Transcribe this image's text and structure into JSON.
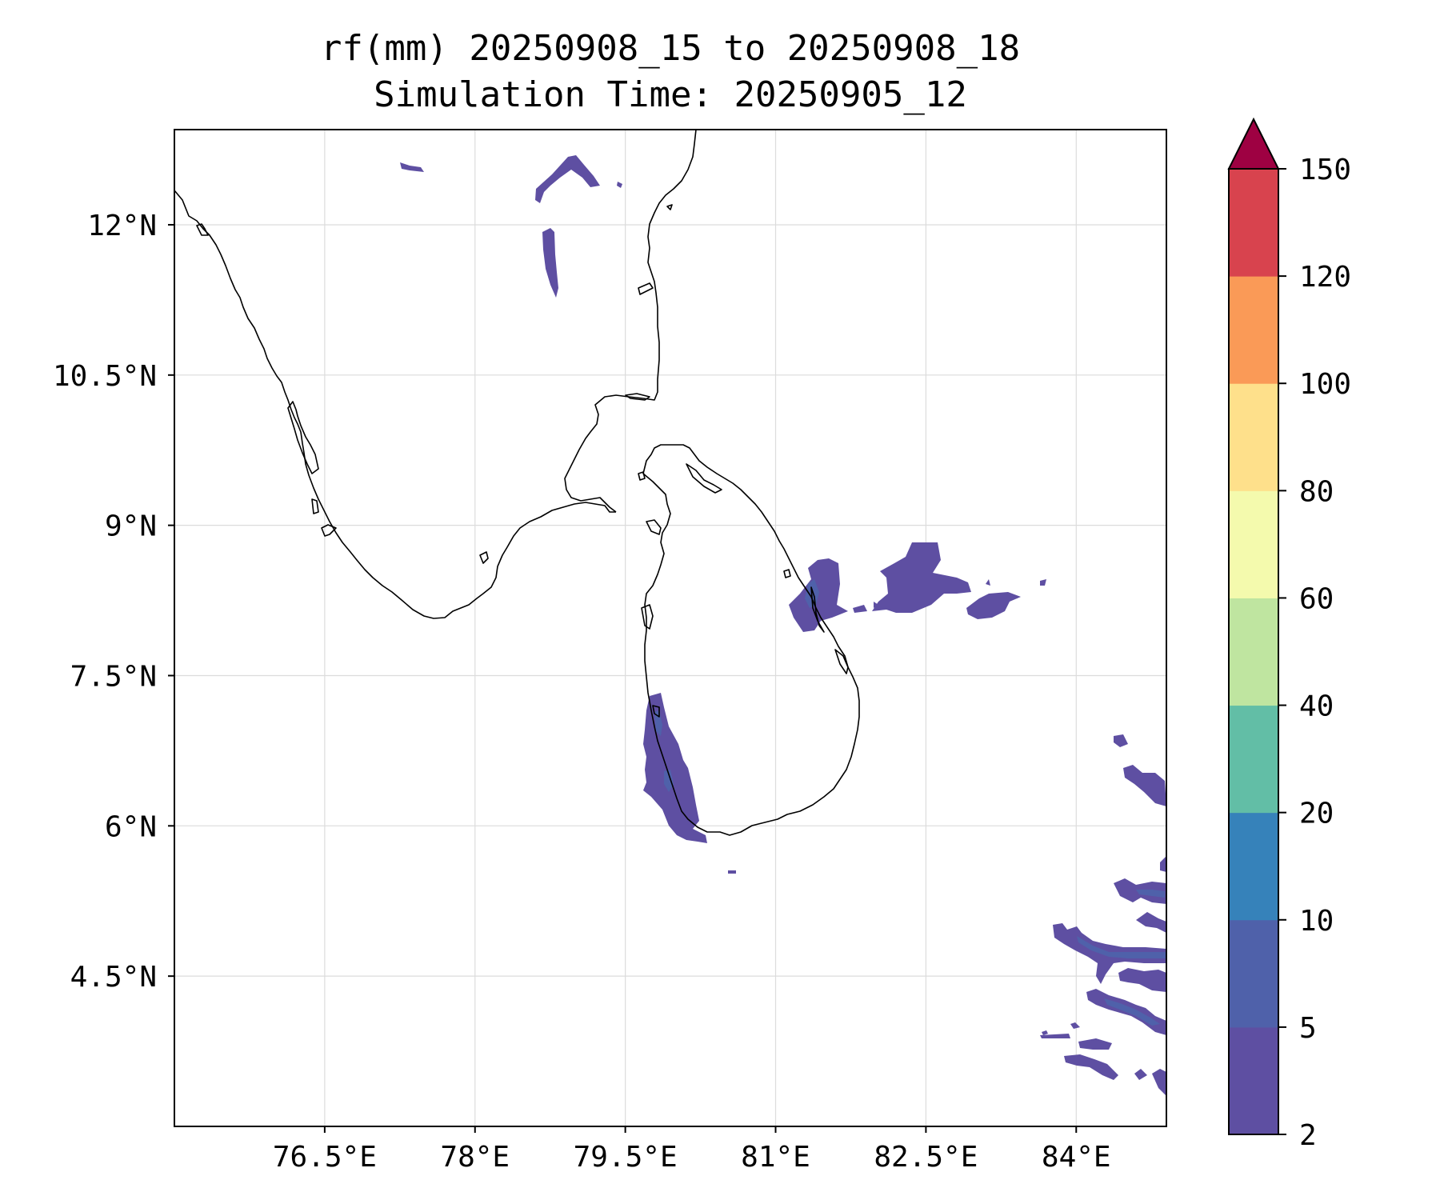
{
  "title_line1": "rf(mm) 20250908_15 to 20250908_18",
  "title_line2": "Simulation Time: 20250905_12",
  "map": {
    "lon_range": [
      75.0,
      84.9
    ],
    "lat_range": [
      3.0,
      12.95
    ],
    "lon_ticks": [
      {
        "value": 76.5,
        "label": "76.5°E"
      },
      {
        "value": 78.0,
        "label": "78°E"
      },
      {
        "value": 79.5,
        "label": "79.5°E"
      },
      {
        "value": 81.0,
        "label": "81°E"
      },
      {
        "value": 82.5,
        "label": "82.5°E"
      },
      {
        "value": 84.0,
        "label": "84°E"
      }
    ],
    "lat_ticks": [
      {
        "value": 12.0,
        "label": "12°N"
      },
      {
        "value": 10.5,
        "label": "10.5°N"
      },
      {
        "value": 9.0,
        "label": "9°N"
      },
      {
        "value": 7.5,
        "label": "7.5°N"
      },
      {
        "value": 6.0,
        "label": "6°N"
      },
      {
        "value": 4.5,
        "label": "4.5°N"
      }
    ],
    "gridlines": true
  },
  "colorbar": {
    "levels": [
      "2",
      "5",
      "10",
      "20",
      "40",
      "60",
      "80",
      "100",
      "120",
      "150"
    ],
    "colors": [
      "#5e4fa2",
      "#4f61aa",
      "#3682ba",
      "#62bea6",
      "#bfe5a0",
      "#f4faad",
      "#fee08b",
      "#fa9a57",
      "#d8434e"
    ],
    "extend_color": "#9e0142",
    "extend": "max"
  },
  "colors": {
    "rain_low": "#5e4fa2",
    "rain_mid": "#4f61aa",
    "coast": "#000000"
  }
}
